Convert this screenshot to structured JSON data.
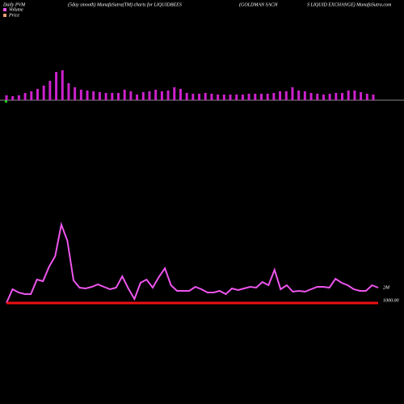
{
  "chart_data": {
    "type": "pvm",
    "title": "Daily PVM",
    "subtitle": "(5day smooth) MunafaSutra(TM) charts for LIQUIDBEES",
    "title_right_1": "(GOLDMAN  SACH",
    "title_right_2": "S LIQUID EXCHANGE) MunafaSutra.com",
    "bars": {
      "name": "Volume",
      "color": "#cc22cc",
      "values": [
        6,
        5,
        6,
        9,
        11,
        14,
        18,
        24,
        35,
        37,
        21,
        16,
        13,
        12,
        11,
        10,
        9,
        9,
        9,
        13,
        11,
        7,
        10,
        11,
        13,
        11,
        12,
        16,
        14,
        9,
        8,
        8,
        9,
        8,
        7,
        7,
        7,
        7,
        7,
        8,
        8,
        8,
        8,
        9,
        11,
        11,
        16,
        12,
        11,
        9,
        8,
        7,
        8,
        9,
        9,
        12,
        12,
        10,
        8,
        7
      ],
      "ylim": [
        0,
        40
      ]
    },
    "series": [
      {
        "name": "Volume",
        "color": "#ee55ee",
        "values": [
          0,
          1785000,
          1365000,
          1155000,
          1155000,
          3045000,
          2835000,
          4725000,
          6090000,
          10185000,
          8085000,
          2940000,
          1995000,
          1890000,
          2100000,
          2415000,
          2100000,
          1785000,
          1995000,
          3465000,
          1890000,
          525000,
          2625000,
          3045000,
          1995000,
          3360000,
          4515000,
          2310000,
          1575000,
          1575000,
          1575000,
          2100000,
          1785000,
          1365000,
          1365000,
          1575000,
          1155000,
          1890000,
          1680000,
          1890000,
          2100000,
          1995000,
          2730000,
          2310000,
          4305000,
          1785000,
          2310000,
          1470000,
          1575000,
          1470000,
          1785000,
          2100000,
          2100000,
          1995000,
          3150000,
          2625000,
          2310000,
          1785000,
          1575000,
          1575000,
          2310000,
          1995000
        ],
        "end_label": "2M",
        "ylim": [
          0,
          10500000
        ]
      },
      {
        "name": "Price",
        "color": "#e8a070",
        "line_color": "#ee1111",
        "values": [
          1000,
          1000,
          1000,
          1000,
          1000,
          1000,
          1000,
          1000,
          1000,
          1000,
          1000,
          1000,
          1000,
          1000,
          1000,
          1000,
          1000,
          1000,
          1000,
          1000,
          1000,
          1000,
          1000,
          1000,
          1000,
          1000,
          1000,
          1000,
          1000,
          1000,
          1000,
          1000,
          1000,
          1000,
          1000,
          1000,
          1000,
          1000,
          1000,
          1000,
          1000,
          1000,
          1000,
          1000,
          1000,
          1000,
          1000,
          1000,
          1000,
          1000,
          1000,
          1000,
          1000,
          1000,
          1000,
          1000,
          1000,
          1000,
          1000,
          1000,
          1000,
          1000
        ],
        "end_label": "1000.00"
      }
    ]
  }
}
